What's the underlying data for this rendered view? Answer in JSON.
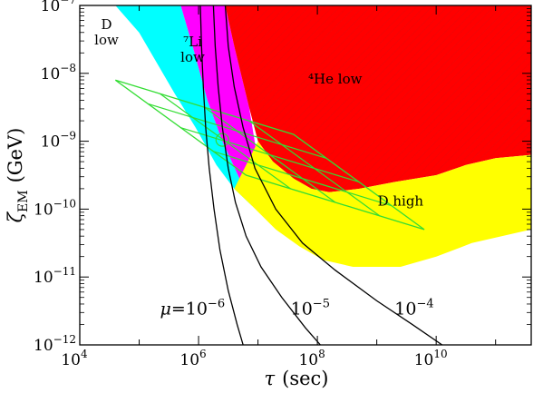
{
  "chart_data": {
    "type": "area",
    "title": "",
    "xlabel": {
      "symbol": "τ",
      "unit": "(sec)"
    },
    "ylabel": {
      "symbol": "ζ",
      "subscript": "EM",
      "unit": "(GeV)"
    },
    "xscale": "log",
    "yscale": "log",
    "xlim_exp": [
      4,
      11.6
    ],
    "ylim_exp": [
      -12,
      -7
    ],
    "xtick_labels": [
      {
        "base": "10",
        "exp": "4",
        "at": 4
      },
      {
        "base": "10",
        "exp": "6",
        "at": 6
      },
      {
        "base": "10",
        "exp": "8",
        "at": 8
      },
      {
        "base": "10",
        "exp": "10",
        "at": 10
      }
    ],
    "ytick_labels": [
      {
        "base": "10",
        "exp": "−7",
        "at": -7
      },
      {
        "base": "10",
        "exp": "−8",
        "at": -8
      },
      {
        "base": "10",
        "exp": "−9",
        "at": -9
      },
      {
        "base": "10",
        "exp": "−10",
        "at": -10
      },
      {
        "base": "10",
        "exp": "−11",
        "at": -11
      },
      {
        "base": "10",
        "exp": "−12",
        "at": -12
      }
    ],
    "regions": [
      {
        "label_lines": [
          "D",
          "low"
        ],
        "color": "#00ffff",
        "label_at": [
          4.45,
          -7.35
        ],
        "boundary_log10": [
          [
            4.6,
            -7
          ],
          [
            5.0,
            -7.4
          ],
          [
            5.3,
            -7.85
          ],
          [
            5.6,
            -8.3
          ],
          [
            5.95,
            -8.8
          ],
          [
            6.3,
            -9.35
          ],
          [
            6.6,
            -9.7
          ],
          [
            6.9,
            -9.95
          ],
          [
            6.4,
            -9.0
          ],
          [
            6.15,
            -8.4
          ],
          [
            5.9,
            -7.6
          ],
          [
            5.7,
            -7
          ]
        ]
      },
      {
        "label_lines": [
          "⁷Li",
          "low"
        ],
        "color": "#ff00ff",
        "label_at": [
          5.9,
          -7.6
        ],
        "boundary_log10": [
          [
            5.7,
            -7
          ],
          [
            5.9,
            -7.6
          ],
          [
            6.15,
            -8.4
          ],
          [
            6.4,
            -9.0
          ],
          [
            6.9,
            -9.95
          ],
          [
            7.0,
            -9.3
          ],
          [
            6.85,
            -8.5
          ],
          [
            6.6,
            -7.6
          ],
          [
            6.45,
            -7
          ]
        ]
      },
      {
        "label_lines": [
          "⁴He low"
        ],
        "color": "#ff0000",
        "label_at": [
          8.3,
          -8.15
        ],
        "boundary_log10": [
          [
            6.45,
            -7
          ],
          [
            6.6,
            -7.6
          ],
          [
            6.85,
            -8.5
          ],
          [
            7.0,
            -9.0
          ],
          [
            7.25,
            -9.3
          ],
          [
            7.6,
            -9.55
          ],
          [
            7.9,
            -9.7
          ],
          [
            8.2,
            -9.75
          ],
          [
            8.7,
            -9.7
          ],
          [
            9.3,
            -9.6
          ],
          [
            10.0,
            -9.5
          ],
          [
            10.5,
            -9.35
          ],
          [
            11.0,
            -9.25
          ],
          [
            11.6,
            -9.2
          ],
          [
            11.6,
            -7
          ]
        ]
      },
      {
        "label_lines": [
          "D high"
        ],
        "color": "#ffff00",
        "label_at": [
          9.4,
          -9.95
        ],
        "boundary_log10": [
          [
            6.9,
            -9.95
          ],
          [
            7.3,
            -10.3
          ],
          [
            7.7,
            -10.55
          ],
          [
            8.1,
            -10.75
          ],
          [
            8.6,
            -10.85
          ],
          [
            9.4,
            -10.85
          ],
          [
            10.0,
            -10.7
          ],
          [
            10.6,
            -10.5
          ],
          [
            11.6,
            -10.3
          ],
          [
            11.6,
            -9.2
          ],
          [
            11.0,
            -9.25
          ],
          [
            10.5,
            -9.35
          ],
          [
            10.0,
            -9.5
          ],
          [
            9.3,
            -9.6
          ],
          [
            8.7,
            -9.7
          ],
          [
            8.2,
            -9.75
          ],
          [
            7.9,
            -9.7
          ],
          [
            7.6,
            -9.55
          ],
          [
            7.25,
            -9.3
          ],
          [
            7.0,
            -9.0
          ],
          [
            6.6,
            -9.7
          ]
        ]
      }
    ],
    "curves": [
      {
        "label": {
          "pre": "μ=10",
          "exp": "−6"
        },
        "label_at": [
          5.35,
          -11.55
        ],
        "color": "#000000",
        "points_log10": [
          [
            6.03,
            -7
          ],
          [
            6.05,
            -7.6
          ],
          [
            6.08,
            -8.2
          ],
          [
            6.12,
            -8.8
          ],
          [
            6.18,
            -9.4
          ],
          [
            6.26,
            -10.0
          ],
          [
            6.36,
            -10.6
          ],
          [
            6.5,
            -11.2
          ],
          [
            6.65,
            -11.7
          ],
          [
            6.75,
            -12
          ]
        ]
      },
      {
        "label": {
          "pre": "10",
          "exp": "−5"
        },
        "label_at": [
          7.55,
          -11.55
        ],
        "color": "#000000",
        "points_log10": [
          [
            6.25,
            -7
          ],
          [
            6.28,
            -7.6
          ],
          [
            6.33,
            -8.2
          ],
          [
            6.4,
            -8.8
          ],
          [
            6.5,
            -9.4
          ],
          [
            6.62,
            -9.9
          ],
          [
            6.8,
            -10.4
          ],
          [
            7.05,
            -10.85
          ],
          [
            7.4,
            -11.3
          ],
          [
            7.8,
            -11.75
          ],
          [
            8.05,
            -12
          ]
        ]
      },
      {
        "label": {
          "pre": "10",
          "exp": "−4"
        },
        "label_at": [
          9.3,
          -11.55
        ],
        "color": "#000000",
        "points_log10": [
          [
            6.45,
            -7
          ],
          [
            6.5,
            -7.6
          ],
          [
            6.6,
            -8.2
          ],
          [
            6.75,
            -8.8
          ],
          [
            6.95,
            -9.4
          ],
          [
            7.3,
            -10.0
          ],
          [
            7.75,
            -10.5
          ],
          [
            8.3,
            -10.9
          ],
          [
            9.0,
            -11.35
          ],
          [
            9.6,
            -11.7
          ],
          [
            10.1,
            -12
          ]
        ]
      }
    ],
    "overlay": {
      "color": "#33dd33",
      "parallelogram_corners_log10": [
        [
          4.6,
          -8.1
        ],
        [
          7.6,
          -8.9
        ],
        [
          9.8,
          -10.3
        ],
        [
          6.8,
          -9.5
        ]
      ],
      "grid_divisions": 4,
      "marker_circle_log10": [
        6.4,
        -8.98
      ]
    }
  }
}
